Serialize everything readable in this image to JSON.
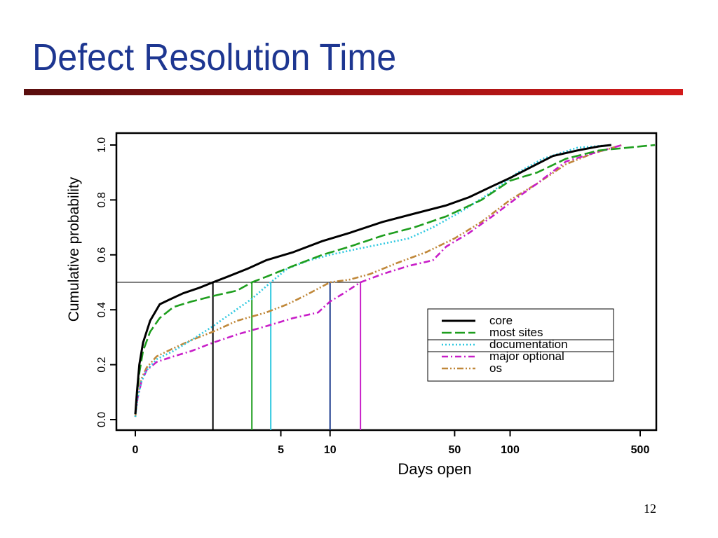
{
  "slide": {
    "title": "Defect Resolution Time",
    "page_number": "12"
  },
  "colors": {
    "title": "#1d3691",
    "accent_rule": "#c81414"
  },
  "chart_data": {
    "type": "line",
    "title": "",
    "xlabel": "Days open",
    "ylabel": "Cumulative probability",
    "x_scale": "log1p",
    "xlim": [
      -0.3,
      650
    ],
    "ylim": [
      0,
      1
    ],
    "x_ticks": [
      {
        "value": 0,
        "label": "0"
      },
      {
        "value": 5,
        "label": "5"
      },
      {
        "value": 10,
        "label": "10"
      },
      {
        "value": 50,
        "label": "50"
      },
      {
        "value": 100,
        "label": "100"
      },
      {
        "value": 500,
        "label": "500"
      }
    ],
    "y_ticks": [
      {
        "value": 0.0,
        "label": "0.0"
      },
      {
        "value": 0.2,
        "label": "0.2"
      },
      {
        "value": 0.4,
        "label": "0.4"
      },
      {
        "value": 0.6,
        "label": "0.6"
      },
      {
        "value": 0.8,
        "label": "0.8"
      },
      {
        "value": 1.0,
        "label": "1.0"
      }
    ],
    "grid": false,
    "legend_position": "center-right",
    "reference_line": {
      "y": 0.5
    },
    "series": [
      {
        "name": "core",
        "color": "#000000",
        "style": "solid",
        "median_days": 1.6,
        "points": [
          [
            0,
            0.02
          ],
          [
            0.02,
            0.1
          ],
          [
            0.05,
            0.2
          ],
          [
            0.1,
            0.28
          ],
          [
            0.2,
            0.36
          ],
          [
            0.35,
            0.42
          ],
          [
            0.5,
            0.435
          ],
          [
            0.8,
            0.46
          ],
          [
            1.2,
            0.48
          ],
          [
            1.6,
            0.5
          ],
          [
            2.1,
            0.52
          ],
          [
            3,
            0.55
          ],
          [
            4,
            0.58
          ],
          [
            6,
            0.61
          ],
          [
            9,
            0.65
          ],
          [
            13,
            0.68
          ],
          [
            20,
            0.72
          ],
          [
            30,
            0.75
          ],
          [
            45,
            0.78
          ],
          [
            60,
            0.81
          ],
          [
            80,
            0.85
          ],
          [
            100,
            0.88
          ],
          [
            130,
            0.92
          ],
          [
            170,
            0.96
          ],
          [
            230,
            0.98
          ],
          [
            300,
            0.995
          ],
          [
            350,
            1.0
          ]
        ]
      },
      {
        "name": "most sites",
        "color": "#1e9e1e",
        "style": "dashed",
        "median_days": 3.2,
        "points": [
          [
            0,
            0.02
          ],
          [
            0.02,
            0.09
          ],
          [
            0.05,
            0.17
          ],
          [
            0.1,
            0.25
          ],
          [
            0.2,
            0.32
          ],
          [
            0.35,
            0.37
          ],
          [
            0.6,
            0.41
          ],
          [
            1.0,
            0.43
          ],
          [
            1.6,
            0.45
          ],
          [
            2.5,
            0.47
          ],
          [
            3.2,
            0.5
          ],
          [
            4,
            0.52
          ],
          [
            6,
            0.56
          ],
          [
            9,
            0.6
          ],
          [
            13,
            0.63
          ],
          [
            20,
            0.67
          ],
          [
            30,
            0.7
          ],
          [
            45,
            0.74
          ],
          [
            70,
            0.8
          ],
          [
            100,
            0.87
          ],
          [
            140,
            0.9
          ],
          [
            200,
            0.95
          ],
          [
            300,
            0.98
          ],
          [
            600,
            1.0
          ]
        ]
      },
      {
        "name": "documentation",
        "color": "#2ec8e0",
        "style": "dotted",
        "median_days": 4.3,
        "points": [
          [
            0,
            0.01
          ],
          [
            0.03,
            0.08
          ],
          [
            0.08,
            0.14
          ],
          [
            0.15,
            0.18
          ],
          [
            0.3,
            0.22
          ],
          [
            0.6,
            0.25
          ],
          [
            1.0,
            0.29
          ],
          [
            1.6,
            0.34
          ],
          [
            2.3,
            0.39
          ],
          [
            3.2,
            0.44
          ],
          [
            4.3,
            0.5
          ],
          [
            5.5,
            0.55
          ],
          [
            7.5,
            0.58
          ],
          [
            10,
            0.6
          ],
          [
            14,
            0.62
          ],
          [
            20,
            0.64
          ],
          [
            28,
            0.66
          ],
          [
            38,
            0.7
          ],
          [
            55,
            0.76
          ],
          [
            80,
            0.83
          ],
          [
            110,
            0.9
          ],
          [
            150,
            0.95
          ],
          [
            230,
            0.99
          ],
          [
            350,
            1.0
          ]
        ]
      },
      {
        "name": "major optional",
        "color": "#c81ec8",
        "style": "dashdot",
        "median_days": 15,
        "points": [
          [
            0,
            0.02
          ],
          [
            0.03,
            0.08
          ],
          [
            0.08,
            0.14
          ],
          [
            0.15,
            0.18
          ],
          [
            0.3,
            0.21
          ],
          [
            0.6,
            0.23
          ],
          [
            1.0,
            0.25
          ],
          [
            1.6,
            0.28
          ],
          [
            2.5,
            0.31
          ],
          [
            4,
            0.34
          ],
          [
            6,
            0.37
          ],
          [
            8.5,
            0.39
          ],
          [
            10,
            0.43
          ],
          [
            12,
            0.46
          ],
          [
            15,
            0.5
          ],
          [
            20,
            0.53
          ],
          [
            28,
            0.56
          ],
          [
            38,
            0.58
          ],
          [
            45,
            0.63
          ],
          [
            60,
            0.68
          ],
          [
            80,
            0.74
          ],
          [
            110,
            0.81
          ],
          [
            140,
            0.86
          ],
          [
            200,
            0.94
          ],
          [
            280,
            0.97
          ],
          [
            400,
            1.0
          ]
        ]
      },
      {
        "name": "os",
        "color": "#c0883a",
        "style": "dashdotdot",
        "median_days": 10,
        "points": [
          [
            0,
            0.01
          ],
          [
            0.03,
            0.09
          ],
          [
            0.08,
            0.15
          ],
          [
            0.15,
            0.19
          ],
          [
            0.3,
            0.23
          ],
          [
            0.6,
            0.26
          ],
          [
            1.0,
            0.29
          ],
          [
            1.6,
            0.32
          ],
          [
            2.5,
            0.36
          ],
          [
            4,
            0.39
          ],
          [
            5.5,
            0.42
          ],
          [
            7,
            0.45
          ],
          [
            10,
            0.5
          ],
          [
            13,
            0.51
          ],
          [
            17,
            0.53
          ],
          [
            24,
            0.57
          ],
          [
            35,
            0.61
          ],
          [
            50,
            0.66
          ],
          [
            70,
            0.72
          ],
          [
            100,
            0.8
          ],
          [
            140,
            0.86
          ],
          [
            200,
            0.93
          ],
          [
            280,
            0.97
          ],
          [
            400,
            1.0
          ]
        ]
      }
    ]
  }
}
